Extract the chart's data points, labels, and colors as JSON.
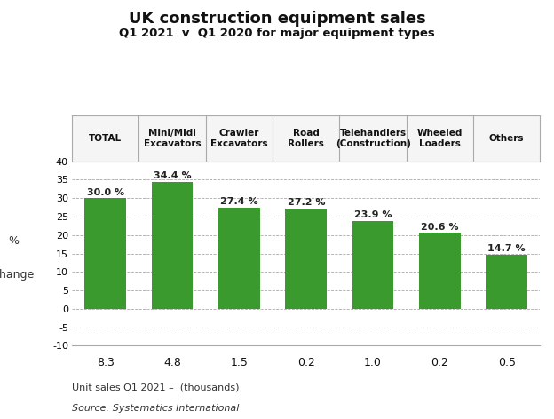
{
  "title_line1": "UK construction equipment sales",
  "title_line2": "Q1 2021  v  Q1 2020 for major equipment types",
  "categories": [
    "TOTAL",
    "Mini/Midi\nExcavators",
    "Crawler\nExcavators",
    "Road\nRollers",
    "Telehandlers\n(Construction)",
    "Wheeled\nLoaders",
    "Others"
  ],
  "values": [
    30.0,
    34.4,
    27.4,
    27.2,
    23.9,
    20.6,
    14.7
  ],
  "value_labels": [
    "30.0 %",
    "34.4 %",
    "27.4 %",
    "27.2 %",
    "23.9 %",
    "20.6 %",
    "14.7 %"
  ],
  "unit_sales": [
    "8.3",
    "4.8",
    "1.5",
    "0.2",
    "1.0",
    "0.2",
    "0.5"
  ],
  "bar_color": "#3a9a2e",
  "ylim": [
    -10,
    40
  ],
  "yticks": [
    -10,
    -5,
    0,
    5,
    10,
    15,
    20,
    25,
    30,
    35,
    40
  ],
  "unit_label": "Unit sales Q1 2021 –  (thousands)",
  "source_text": "Source: Systematics International",
  "background_color": "#ffffff",
  "header_bg": "#f5f5f5",
  "footer_bg": "#d0d0d0",
  "border_color": "#aaaaaa",
  "grid_color": "#aaaaaa",
  "ylabel_line1": "%",
  "ylabel_line2": "change"
}
